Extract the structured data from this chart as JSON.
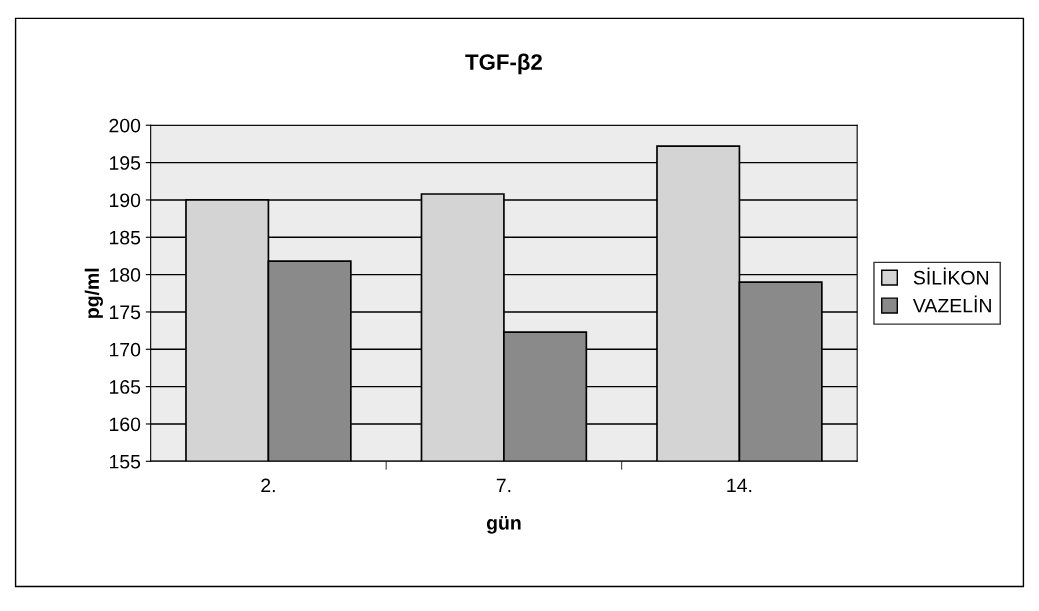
{
  "chart_data": {
    "type": "bar",
    "title": "TGF-β2",
    "xlabel": "gün",
    "ylabel": "pg/ml",
    "categories": [
      "2.",
      "7.",
      "14."
    ],
    "series": [
      {
        "name": "SİLİKON",
        "color": "#d4d4d4",
        "values": [
          190,
          190.8,
          197.2
        ]
      },
      {
        "name": "VAZELİN",
        "color": "#8a8a8a",
        "values": [
          181.8,
          172.3,
          179
        ]
      }
    ],
    "ylim": [
      155,
      200
    ],
    "yticks": [
      155,
      160,
      165,
      170,
      175,
      180,
      185,
      190,
      195,
      200
    ],
    "grid": "y",
    "legend": "right"
  }
}
